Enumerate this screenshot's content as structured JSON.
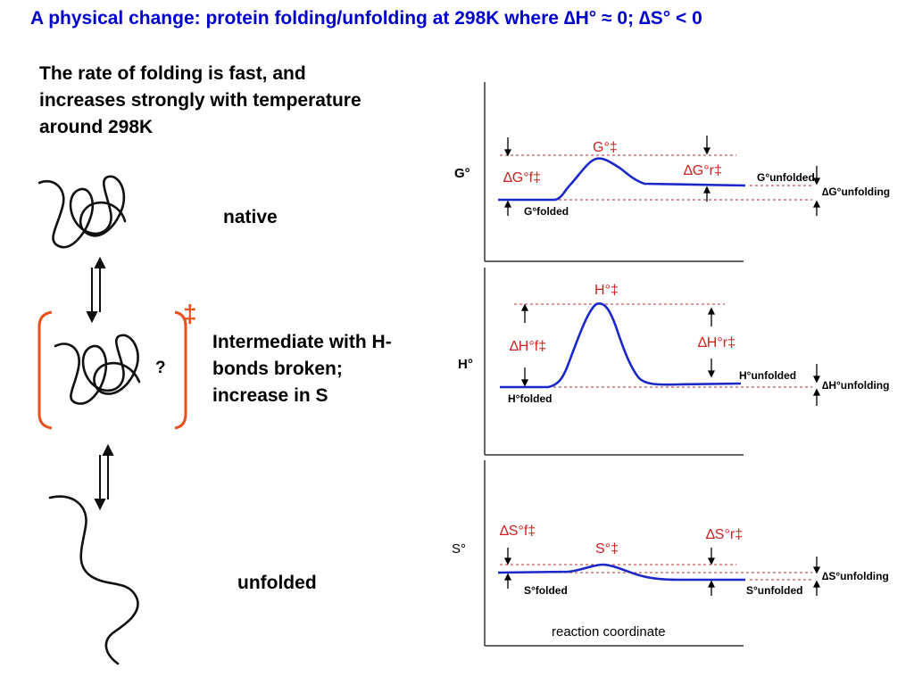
{
  "title": "A physical change: protein folding/unfolding at 298K where ∆H° ≈ 0;  ∆S° < 0",
  "intro": "The rate of folding is fast, and\nincreases strongly with temperature\naround 298K",
  "states": {
    "native": "native",
    "intermediate": "Intermediate with H-\nbonds broken;\nincrease in S",
    "unfolded": "unfolded",
    "question": "?",
    "transition_symbol": "‡"
  },
  "colors": {
    "title": "#0000cc",
    "curve": "#1a28c8",
    "annotation": "#cc2222",
    "bracket": "#e8501e"
  },
  "plots": {
    "g": {
      "axis_label": "G°",
      "peak_label": "G°‡",
      "forward_label": "∆G°f‡",
      "reverse_label": "∆G°r‡",
      "folded_label": "G°folded",
      "unfolded_label": "G°unfolded",
      "difference_label": "∆G°unfolding"
    },
    "h": {
      "axis_label": "H°",
      "peak_label": "H°‡",
      "forward_label": "∆H°f‡",
      "reverse_label": "∆H°r‡",
      "folded_label": "H°folded",
      "unfolded_label": "H°unfolded",
      "difference_label": "∆H°unfolding"
    },
    "s": {
      "axis_label": "S°",
      "peak_label": "S°‡",
      "forward_label": "∆S°f‡",
      "reverse_label": "∆S°r‡",
      "folded_label": "S°folded",
      "unfolded_label": "S°unfolded",
      "difference_label": "∆S°unfolding"
    },
    "x_axis_label": "reaction coordinate"
  }
}
